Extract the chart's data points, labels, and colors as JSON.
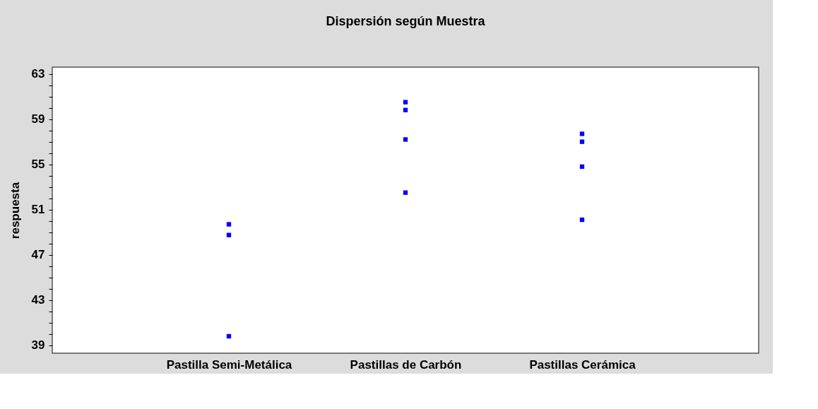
{
  "chart_data": {
    "type": "scatter",
    "title": "Dispersión según Muestra",
    "ylabel": "respuesta",
    "categories": [
      "Pastilla Semi-Metálica",
      "Pastillas de Carbón",
      "Pastillas Cerámica"
    ],
    "series": [
      {
        "color": "#0000ff",
        "x": [
          "Pastilla Semi-Metálica",
          "Pastilla Semi-Metálica",
          "Pastilla Semi-Metálica",
          "Pastillas de Carbón",
          "Pastillas de Carbón",
          "Pastillas de Carbón",
          "Pastillas de Carbón",
          "Pastillas Cerámica",
          "Pastillas Cerámica",
          "Pastillas Cerámica",
          "Pastillas Cerámica"
        ],
        "values": [
          49.7,
          48.75,
          39.8,
          60.5,
          59.8,
          57.2,
          52.5,
          57.7,
          57.0,
          54.8,
          50.1
        ]
      }
    ],
    "ylim": [
      38.3,
      63.6
    ],
    "yticks": [
      39,
      {
        "value": 40,
        "label": null
      },
      {
        "value": 41,
        "label": null
      },
      {
        "value": 42,
        "label": null
      },
      43,
      {
        "value": 44,
        "label": null
      },
      {
        "value": 45,
        "label": null
      },
      {
        "value": 46,
        "label": null
      },
      47,
      {
        "value": 48,
        "label": null
      },
      {
        "value": 49,
        "label": null
      },
      {
        "value": 50,
        "label": null
      },
      51,
      {
        "value": 52,
        "label": null
      },
      {
        "value": 53,
        "label": null
      },
      {
        "value": 54,
        "label": null
      },
      55,
      {
        "value": 56,
        "label": null
      },
      {
        "value": 57,
        "label": null
      },
      {
        "value": 58,
        "label": null
      },
      59,
      {
        "value": 60,
        "label": null
      },
      {
        "value": 61,
        "label": null
      },
      {
        "value": 62,
        "label": null
      },
      63
    ],
    "marker": "square",
    "grid": false
  }
}
